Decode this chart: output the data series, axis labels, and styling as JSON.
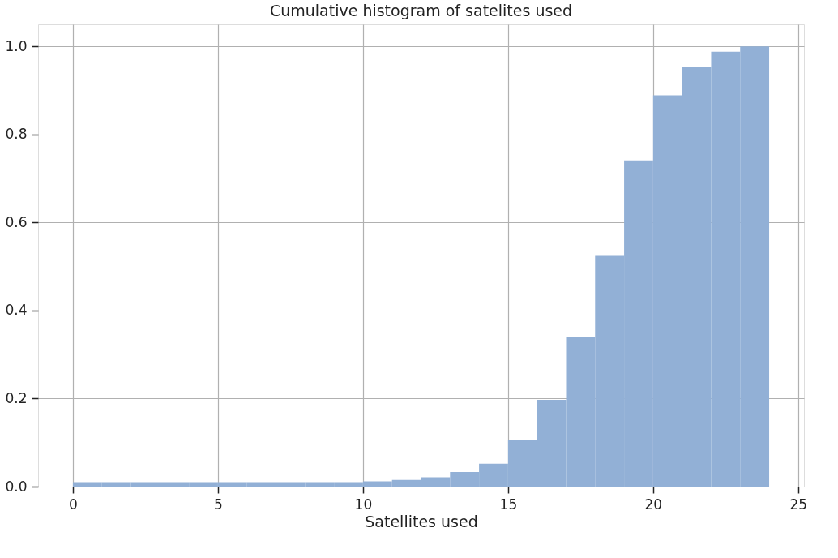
{
  "chart_data": {
    "type": "histogram",
    "title": "Cumulative histogram of satelites used",
    "xlabel": "Satellites used",
    "bins": [
      0,
      1,
      2,
      3,
      4,
      5,
      6,
      7,
      8,
      9,
      10,
      11,
      12,
      13,
      14,
      15,
      16,
      17,
      18,
      19,
      20,
      21,
      22,
      23,
      24
    ],
    "values": [
      0.01,
      0.01,
      0.01,
      0.01,
      0.01,
      0.01,
      0.01,
      0.01,
      0.01,
      0.01,
      0.012,
      0.015,
      0.021,
      0.033,
      0.052,
      0.105,
      0.197,
      0.339,
      0.524,
      0.741,
      0.889,
      0.953,
      0.988,
      1.0
    ],
    "color": "#92b0d6",
    "xlim": [
      -1.2,
      25.2
    ],
    "ylim": [
      0,
      1.05
    ],
    "xticks": [
      0,
      5,
      10,
      15,
      20,
      25
    ],
    "yticks": [
      {
        "value": 0,
        "label": "0.0"
      },
      {
        "value": 0.2,
        "label": "0.2"
      },
      {
        "value": 0.4,
        "label": "0.4"
      },
      {
        "value": 0.6,
        "label": "0.6"
      },
      {
        "value": 0.8,
        "label": "0.8"
      },
      {
        "value": 1.0,
        "label": "1.0"
      }
    ],
    "grid": true
  }
}
